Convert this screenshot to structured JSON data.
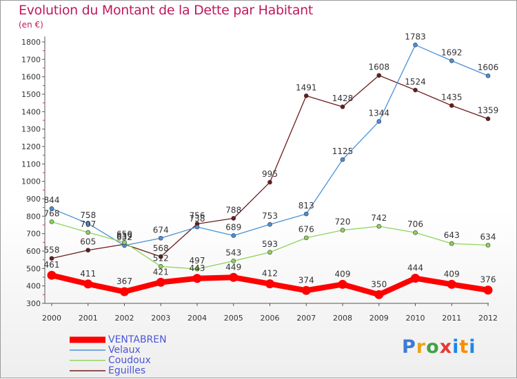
{
  "chart_data": {
    "type": "line",
    "title": "Evolution du Montant de la Dette par Habitant",
    "subtitle": "(en €)",
    "xlabel": "",
    "ylabel": "",
    "x": [
      "2000",
      "2001",
      "2002",
      "2003",
      "2004",
      "2005",
      "2006",
      "2007",
      "2008",
      "2009",
      "2010",
      "2011",
      "2012"
    ],
    "yticks": [
      300,
      400,
      500,
      600,
      700,
      800,
      900,
      1000,
      1100,
      1200,
      1300,
      1400,
      1500,
      1600,
      1700,
      1800
    ],
    "ylim": [
      300,
      1800
    ],
    "grid": false,
    "legend_position": "bottom-left",
    "series": [
      {
        "name": "Eguilles",
        "color": "#6b1a1a",
        "values": [
          558,
          605,
          639,
          568,
          756,
          788,
          995,
          1491,
          1428,
          1608,
          1524,
          1435,
          1359
        ],
        "labels_above": [
          true,
          true,
          true,
          true,
          true,
          true,
          true,
          true,
          true,
          true,
          true,
          true,
          true
        ]
      },
      {
        "name": "Velaux",
        "color": "#4a90d9",
        "values": [
          844,
          758,
          632,
          674,
          738,
          689,
          753,
          813,
          1125,
          1344,
          1783,
          1692,
          1606
        ],
        "labels_above": [
          true,
          true,
          true,
          true,
          true,
          true,
          true,
          true,
          true,
          true,
          true,
          true,
          true
        ]
      },
      {
        "name": "Coudoux",
        "color": "#8ed45a",
        "values": [
          768,
          707,
          650,
          512,
          497,
          543,
          593,
          676,
          720,
          742,
          706,
          643,
          634
        ],
        "labels_above": [
          true,
          true,
          true,
          true,
          true,
          true,
          true,
          true,
          true,
          true,
          true,
          true,
          true
        ]
      },
      {
        "name": "VENTABREN",
        "color": "#ff0000",
        "values": [
          461,
          411,
          367,
          421,
          443,
          449,
          412,
          374,
          409,
          350,
          444,
          409,
          376
        ],
        "labels_above": [
          true,
          true,
          true,
          true,
          true,
          true,
          true,
          true,
          true,
          true,
          true,
          true,
          true
        ]
      }
    ],
    "legend_order": [
      "VENTABREN",
      "Velaux",
      "Coudoux",
      "Eguilles"
    ]
  },
  "logo": {
    "letters": [
      "P",
      "r",
      "o",
      "x",
      "i",
      "t",
      "i"
    ]
  }
}
